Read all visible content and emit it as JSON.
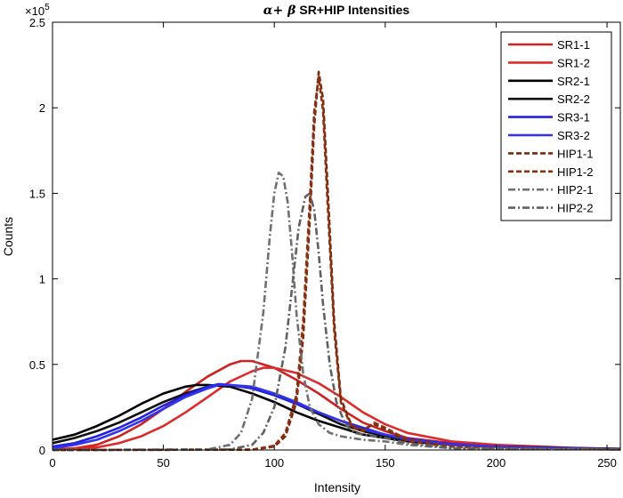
{
  "chart_data": {
    "type": "line",
    "title_prefix": "α+ β",
    "title_rest": " SR+HIP Intensities",
    "xlabel": "Intensity",
    "ylabel": "Counts",
    "exponent_label": "×10",
    "exponent_power": "5",
    "xlim": [
      0,
      256
    ],
    "ylim": [
      0,
      2.5
    ],
    "x_ticks": [
      0,
      50,
      100,
      150,
      200,
      250
    ],
    "x_tick_labels": [
      "0",
      "50",
      "100",
      "150",
      "200",
      "250"
    ],
    "y_ticks": [
      0,
      0.5,
      1,
      1.5,
      2,
      2.5
    ],
    "y_tick_labels": [
      "0",
      "0.5",
      "1",
      "1.5",
      "2",
      "2.5"
    ],
    "legend_position": "top-right",
    "series": [
      {
        "name": "SR1-1",
        "color": "#cc2222",
        "dash": "solid",
        "x": [
          0,
          10,
          20,
          30,
          40,
          50,
          60,
          70,
          80,
          85,
          90,
          100,
          110,
          120,
          130,
          140,
          150,
          160,
          180,
          200,
          220,
          240,
          256
        ],
        "y": [
          0.003,
          0.01,
          0.03,
          0.08,
          0.15,
          0.24,
          0.34,
          0.43,
          0.5,
          0.52,
          0.52,
          0.48,
          0.41,
          0.33,
          0.24,
          0.16,
          0.11,
          0.07,
          0.04,
          0.025,
          0.015,
          0.01,
          0.006
        ]
      },
      {
        "name": "SR1-2",
        "color": "#dd2a2a",
        "dash": "solid",
        "x": [
          0,
          10,
          20,
          30,
          40,
          50,
          60,
          70,
          80,
          90,
          95,
          100,
          110,
          120,
          130,
          140,
          150,
          160,
          180,
          200,
          220,
          240,
          256
        ],
        "y": [
          0.002,
          0.006,
          0.015,
          0.04,
          0.08,
          0.14,
          0.22,
          0.31,
          0.4,
          0.46,
          0.48,
          0.48,
          0.45,
          0.39,
          0.31,
          0.22,
          0.15,
          0.1,
          0.05,
          0.03,
          0.02,
          0.01,
          0.008
        ]
      },
      {
        "name": "SR2-1",
        "color": "#000000",
        "dash": "solid",
        "x": [
          0,
          10,
          20,
          30,
          40,
          50,
          60,
          65,
          70,
          80,
          90,
          100,
          110,
          120,
          130,
          140,
          150,
          160,
          180,
          200,
          220,
          240,
          256
        ],
        "y": [
          0.06,
          0.09,
          0.14,
          0.2,
          0.27,
          0.33,
          0.37,
          0.38,
          0.38,
          0.37,
          0.33,
          0.28,
          0.22,
          0.17,
          0.13,
          0.09,
          0.07,
          0.05,
          0.03,
          0.02,
          0.015,
          0.01,
          0.006
        ]
      },
      {
        "name": "SR2-2",
        "color": "#111111",
        "dash": "solid",
        "x": [
          0,
          10,
          20,
          30,
          40,
          50,
          60,
          70,
          75,
          80,
          90,
          100,
          110,
          120,
          130,
          140,
          150,
          160,
          180,
          200,
          220,
          240,
          256
        ],
        "y": [
          0.04,
          0.07,
          0.11,
          0.16,
          0.22,
          0.28,
          0.33,
          0.37,
          0.38,
          0.38,
          0.36,
          0.32,
          0.27,
          0.21,
          0.15,
          0.11,
          0.08,
          0.055,
          0.03,
          0.02,
          0.014,
          0.009,
          0.005
        ]
      },
      {
        "name": "SR3-1",
        "color": "#2222dd",
        "dash": "solid",
        "x": [
          0,
          10,
          20,
          30,
          40,
          50,
          60,
          70,
          75,
          80,
          90,
          100,
          110,
          120,
          130,
          140,
          150,
          160,
          180,
          200,
          220,
          240,
          256
        ],
        "y": [
          0.02,
          0.04,
          0.08,
          0.13,
          0.19,
          0.26,
          0.32,
          0.37,
          0.385,
          0.38,
          0.36,
          0.32,
          0.27,
          0.22,
          0.17,
          0.13,
          0.09,
          0.065,
          0.035,
          0.02,
          0.014,
          0.009,
          0.005
        ]
      },
      {
        "name": "SR3-2",
        "color": "#3333ee",
        "dash": "solid",
        "x": [
          0,
          10,
          20,
          30,
          40,
          50,
          60,
          70,
          75,
          80,
          90,
          100,
          110,
          120,
          130,
          140,
          150,
          160,
          180,
          200,
          220,
          240,
          256
        ],
        "y": [
          0.01,
          0.03,
          0.06,
          0.11,
          0.17,
          0.24,
          0.31,
          0.36,
          0.38,
          0.38,
          0.37,
          0.33,
          0.28,
          0.22,
          0.17,
          0.12,
          0.09,
          0.06,
          0.032,
          0.02,
          0.013,
          0.008,
          0.005
        ]
      },
      {
        "name": "HIP1-1",
        "color": "#7a2a10",
        "dash": "6,3",
        "x": [
          0,
          90,
          100,
          105,
          110,
          113,
          116,
          118,
          120,
          122,
          124,
          127,
          130,
          135,
          140,
          145,
          150,
          160,
          180,
          200,
          256
        ],
        "y": [
          0,
          0.002,
          0.02,
          0.08,
          0.28,
          0.65,
          1.35,
          1.9,
          2.21,
          2.05,
          1.55,
          0.75,
          0.3,
          0.14,
          0.12,
          0.15,
          0.12,
          0.05,
          0.02,
          0.01,
          0.003
        ]
      },
      {
        "name": "HIP1-2",
        "color": "#8b3010",
        "dash": "6,3",
        "x": [
          0,
          90,
          100,
          105,
          110,
          113,
          116,
          118,
          120,
          122,
          124,
          127,
          130,
          135,
          140,
          145,
          150,
          160,
          180,
          200,
          256
        ],
        "y": [
          0,
          0.002,
          0.025,
          0.1,
          0.32,
          0.75,
          1.45,
          1.98,
          2.18,
          1.98,
          1.45,
          0.7,
          0.28,
          0.13,
          0.11,
          0.16,
          0.13,
          0.06,
          0.02,
          0.01,
          0.003
        ]
      },
      {
        "name": "HIP2-1",
        "color": "#707070",
        "dash": "8,3,2,3",
        "x": [
          0,
          70,
          80,
          85,
          90,
          95,
          98,
          100,
          102,
          104,
          106,
          108,
          110,
          113,
          116,
          120,
          125,
          130,
          140,
          150,
          160,
          180,
          256
        ],
        "y": [
          0,
          0.003,
          0.03,
          0.1,
          0.3,
          0.8,
          1.25,
          1.5,
          1.62,
          1.6,
          1.45,
          1.15,
          0.8,
          0.45,
          0.25,
          0.15,
          0.1,
          0.08,
          0.06,
          0.05,
          0.03,
          0.01,
          0.003
        ]
      },
      {
        "name": "HIP2-2",
        "color": "#606060",
        "dash": "8,3,2,3",
        "x": [
          0,
          80,
          90,
          95,
          100,
          105,
          108,
          111,
          114,
          116,
          118,
          120,
          122,
          125,
          128,
          132,
          136,
          140,
          150,
          160,
          180,
          256
        ],
        "y": [
          0,
          0.003,
          0.03,
          0.1,
          0.25,
          0.6,
          0.95,
          1.3,
          1.48,
          1.5,
          1.4,
          1.15,
          0.85,
          0.5,
          0.28,
          0.15,
          0.1,
          0.09,
          0.07,
          0.04,
          0.01,
          0.003
        ]
      }
    ]
  }
}
